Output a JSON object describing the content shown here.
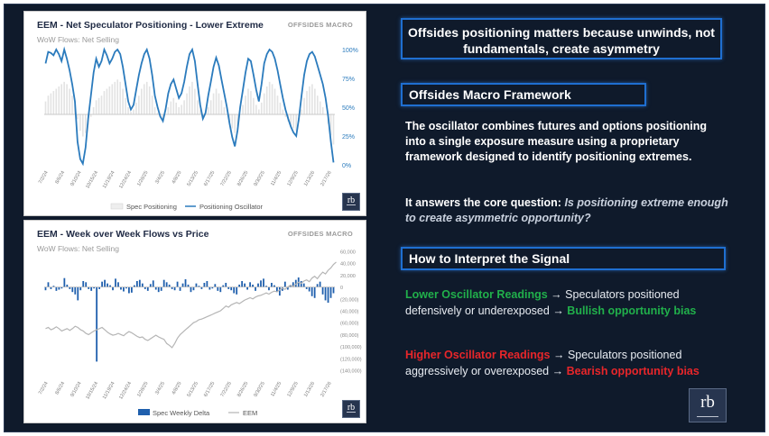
{
  "chart1": {
    "title": "EEM - Net Speculator Positioning - Lower Extreme",
    "subtitle": "WoW Flows: Net Selling",
    "brand": "OFFSIDES MACRO",
    "legend": [
      "Spec Positioning",
      "Positioning Oscillator"
    ],
    "y_ticks": [
      "100%",
      "75%",
      "50%",
      "25%",
      "0%"
    ],
    "x_ticks": [
      "7/2/24",
      "8/6/24",
      "9/10/24",
      "10/15/24",
      "11/19/24",
      "12/24/24",
      "1/28/25",
      "3/4/25",
      "4/8/25",
      "5/13/25",
      "6/17/25",
      "7/22/25",
      "8/26/25",
      "9/30/25",
      "11/4/25",
      "12/9/25",
      "1/13/26",
      "2/17/26"
    ],
    "colors": {
      "oscillator": "#2b7bbd",
      "bars": "#e3e3e3"
    }
  },
  "chart2": {
    "title": "EEM - Week over Week Flows vs Price",
    "subtitle": "WoW Flows: Net Selling",
    "brand": "OFFSIDES MACRO",
    "legend": [
      "Spec Weekly Delta",
      "EEM"
    ],
    "y_ticks": [
      "60,000",
      "40,000",
      "20,000",
      "0",
      "(20,000)",
      "(40,000)",
      "(60,000)",
      "(80,000)",
      "(100,000)",
      "(120,000)",
      "(140,000)"
    ],
    "x_ticks": [
      "7/2/24",
      "8/6/24",
      "9/10/24",
      "10/15/24",
      "11/19/24",
      "12/24/24",
      "1/28/25",
      "3/4/25",
      "4/8/25",
      "5/13/25",
      "6/17/25",
      "7/22/25",
      "8/26/25",
      "9/30/25",
      "11/4/25",
      "12/9/25",
      "1/13/26",
      "2/17/26"
    ],
    "colors": {
      "bars": "#1f5fad",
      "price": "#b5b5b5"
    }
  },
  "chart_data": [
    {
      "type": "line",
      "title": "EEM - Net Speculator Positioning - Lower Extreme",
      "ylim": [
        0,
        100
      ],
      "series": [
        {
          "name": "Positioning Oscillator",
          "values": [
            88,
            98,
            97,
            95,
            100,
            96,
            90,
            100,
            92,
            82,
            70,
            55,
            20,
            5,
            1,
            15,
            40,
            60,
            80,
            92,
            85,
            90,
            100,
            95,
            88,
            92,
            98,
            100,
            96,
            85,
            70,
            55,
            48,
            52,
            65,
            78,
            88,
            96,
            100,
            92,
            78,
            60,
            50,
            42,
            38,
            48,
            62,
            70,
            74,
            66,
            58,
            62,
            72,
            85,
            96,
            100,
            90,
            70,
            52,
            40,
            45,
            60,
            72,
            85,
            93,
            86,
            74,
            62,
            50,
            36,
            24,
            16,
            30,
            50,
            65,
            80,
            92,
            90,
            78,
            65,
            55,
            70,
            88,
            96,
            100,
            98,
            92,
            82,
            70,
            58,
            48,
            40,
            33,
            28,
            25,
            40,
            60,
            78,
            90,
            96,
            98,
            94,
            86,
            78,
            70,
            58,
            42,
            20,
            2
          ]
        },
        {
          "name": "Spec Positioning",
          "values": [
            55,
            60,
            62,
            64,
            66,
            68,
            70,
            72,
            70,
            66,
            60,
            52,
            40,
            30,
            25,
            28,
            35,
            42,
            50,
            56,
            58,
            60,
            64,
            66,
            68,
            70,
            72,
            74,
            72,
            66,
            58,
            50,
            46,
            48,
            54,
            60,
            66,
            70,
            72,
            68,
            60,
            50,
            45,
            42,
            40,
            44,
            50,
            55,
            58,
            54,
            50,
            52,
            56,
            62,
            68,
            72,
            66,
            56,
            48,
            42,
            44,
            50,
            56,
            62,
            66,
            62,
            56,
            50,
            44,
            38,
            32,
            28,
            34,
            44,
            52,
            60,
            66,
            64,
            58,
            52,
            48,
            54,
            62,
            68,
            72,
            70,
            66,
            60,
            54,
            48,
            42,
            38,
            34,
            32,
            30,
            38,
            48,
            58,
            64,
            68,
            70,
            66,
            60,
            55,
            50,
            44,
            36,
            26,
            18
          ]
        }
      ]
    },
    {
      "type": "bar",
      "title": "EEM - Week over Week Flows vs Price",
      "ylim": [
        -140000,
        60000
      ],
      "series": [
        {
          "name": "Spec Weekly Delta",
          "values": [
            -5000,
            8000,
            -3000,
            2000,
            -6000,
            -4000,
            -2000,
            15000,
            4000,
            -3000,
            -8000,
            -12000,
            -22000,
            -5000,
            10000,
            8000,
            -3000,
            -6000,
            -2000,
            -125000,
            -3000,
            9000,
            12000,
            6000,
            3000,
            -5000,
            14000,
            8000,
            -4000,
            -7000,
            -2000,
            -10000,
            -9000,
            3000,
            10000,
            12000,
            6000,
            -3000,
            -6000,
            5000,
            11000,
            -4000,
            -8000,
            -6000,
            12000,
            8000,
            4000,
            -3000,
            -5000,
            9000,
            -6000,
            6000,
            13000,
            4000,
            -8000,
            -5000,
            6000,
            2000,
            -3000,
            7000,
            10000,
            -4000,
            -2000,
            5000,
            -6000,
            -8000,
            3000,
            7000,
            -3000,
            -5000,
            -10000,
            -12000,
            4000,
            10000,
            6000,
            -4000,
            8000,
            4000,
            -6000,
            6000,
            11000,
            14000,
            2000,
            -5000,
            7000,
            3000,
            -8000,
            -14000,
            -6000,
            9000,
            -4000,
            3000,
            8000,
            12000,
            16000,
            10000,
            6000,
            -3000,
            -7000,
            -15000,
            -18000,
            5000,
            9000,
            -12000,
            -22000,
            -26000,
            -18000,
            -10000
          ]
        },
        {
          "name": "EEM",
          "values": [
            -70000,
            -68000,
            -72000,
            -70000,
            -67000,
            -70000,
            -74000,
            -72000,
            -70000,
            -73000,
            -70000,
            -66000,
            -68000,
            -72000,
            -74000,
            -78000,
            -80000,
            -77000,
            -74000,
            -72000,
            -70000,
            -68000,
            -72000,
            -76000,
            -79000,
            -81000,
            -80000,
            -78000,
            -80000,
            -82000,
            -78000,
            -75000,
            -77000,
            -80000,
            -83000,
            -85000,
            -84000,
            -88000,
            -90000,
            -87000,
            -84000,
            -81000,
            -84000,
            -86000,
            -88000,
            -95000,
            -98000,
            -102000,
            -95000,
            -86000,
            -80000,
            -76000,
            -72000,
            -68000,
            -64000,
            -60000,
            -58000,
            -55000,
            -54000,
            -52000,
            -50000,
            -48000,
            -46000,
            -44000,
            -42000,
            -40000,
            -36000,
            -32000,
            -34000,
            -30000,
            -28000,
            -26000,
            -28000,
            -25000,
            -22000,
            -20000,
            -18000,
            -20000,
            -17000,
            -15000,
            -14000,
            -12000,
            -10000,
            -12000,
            -9000,
            -7000,
            -8000,
            -5000,
            -2000,
            -4000,
            0,
            3000,
            1000,
            5000,
            8000,
            6000,
            10000,
            12000,
            9000,
            15000,
            18000,
            14000,
            20000,
            25000,
            22000,
            28000,
            32000,
            38000,
            42000
          ]
        }
      ]
    }
  ],
  "right": {
    "headline": "Offsides positioning matters because unwinds, not fundamentals, create asymmetry",
    "framework_heading": "Offsides Macro Framework",
    "para1": "The oscillator combines futures and options positioning into a single exposure measure using a proprietary framework designed to identify positioning extremes.",
    "para2_lead": "It answers the core question: ",
    "para2_italic": "Is positioning extreme enough to create asymmetric opportunity?",
    "interpret_heading": "How to Interpret the Signal",
    "lower_label": "Lower Oscillator Readings",
    "lower_text1": "Speculators positioned",
    "lower_text2": "defensively or underexposed",
    "lower_bias": "Bullish opportunity bias",
    "higher_label": "Higher Oscillator Readings",
    "higher_text1": "Speculators positioned",
    "higher_text2": "aggressively or overexposed",
    "higher_bias": "Bearish opportunity bias",
    "arrow": "→",
    "logo_mark": "rb"
  }
}
